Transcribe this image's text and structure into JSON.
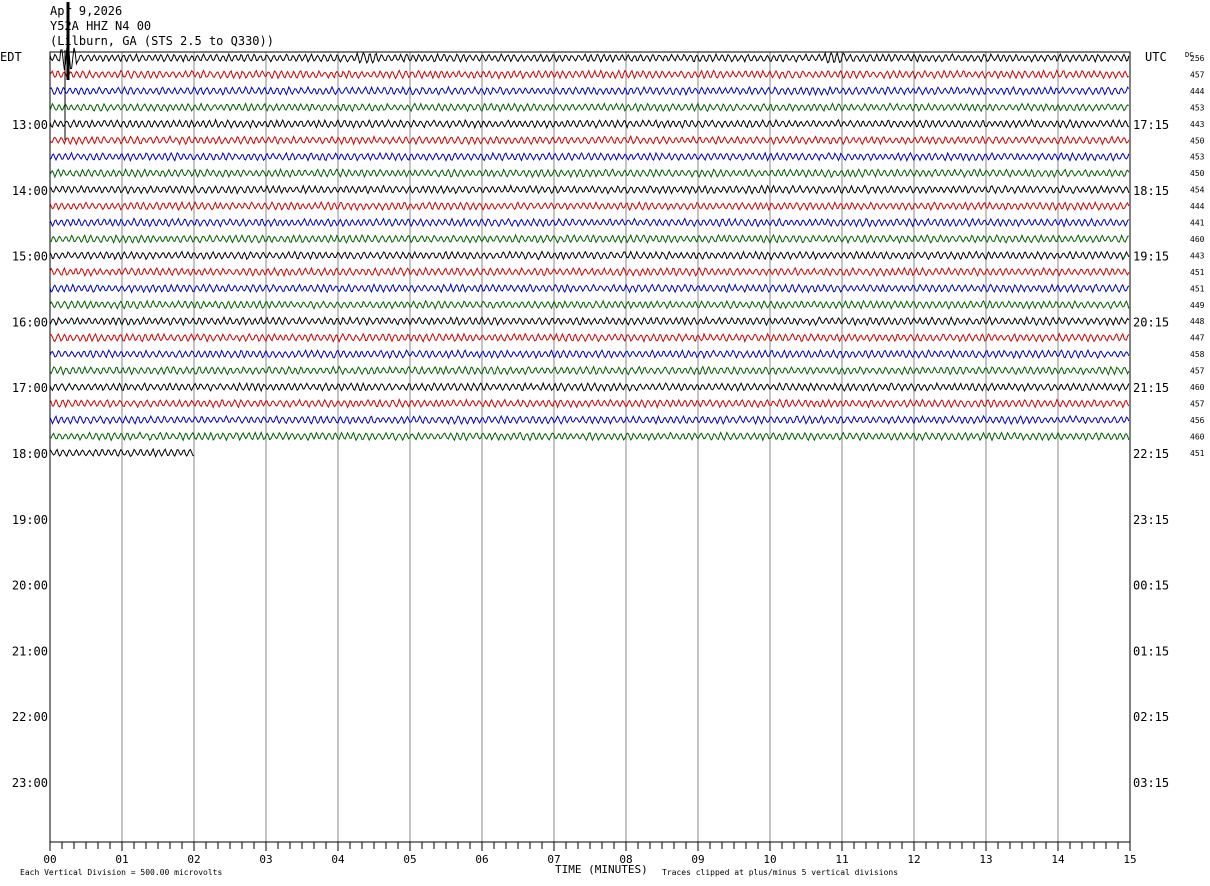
{
  "header": {
    "date_line": "Apr 9,2026",
    "station_line": "Y52A HHZ N4 00",
    "location_line": "(Lilburn, GA (STS 2.5 to Q330))"
  },
  "left_timezone": "EDT",
  "right_timezone": "UTC",
  "dc_label": "DC",
  "footer": {
    "scale_note": "Each Vertical Division =  500.00 microvolts",
    "x_axis_label": "TIME (MINUTES)",
    "clip_note": "Traces clipped at plus/minus 5 vertical divisions"
  },
  "colors": {
    "trace_cycle": [
      "#000000",
      "#d00000",
      "#0000c0",
      "#006000"
    ],
    "grid": "#888888",
    "frame": "#000000"
  },
  "chart_data": {
    "type": "line",
    "title": "",
    "xlabel": "TIME (MINUTES)",
    "ylabel": "",
    "xlim": [
      0,
      15
    ],
    "x_ticks": [
      "00",
      "01",
      "02",
      "03",
      "04",
      "05",
      "06",
      "07",
      "08",
      "09",
      "10",
      "11",
      "12",
      "13",
      "14",
      "15"
    ],
    "left_hour_labels": [
      "13:00",
      "14:00",
      "15:00",
      "16:00",
      "17:00",
      "18:00",
      "19:00",
      "20:00",
      "21:00",
      "22:00",
      "23:00"
    ],
    "right_hour_labels": [
      "17:15",
      "18:15",
      "19:15",
      "20:15",
      "21:15",
      "22:15",
      "23:15",
      "00:15",
      "01:15",
      "02:15",
      "03:15"
    ],
    "dc_offsets": [
      "256",
      "457",
      "444",
      "453",
      "443",
      "450",
      "453",
      "450",
      "454",
      "444",
      "441",
      "460",
      "443",
      "451",
      "451",
      "449",
      "448",
      "447",
      "458",
      "457",
      "460",
      "457",
      "456",
      "460",
      "451"
    ],
    "rows_per_hour": 4,
    "rows_before_first_label": 4,
    "last_row_minutes": 2,
    "events": [
      {
        "row": 0,
        "minute": 0.25,
        "type": "large spike"
      },
      {
        "row": 0,
        "minute": 4.4,
        "type": "burst"
      },
      {
        "row": 0,
        "minute": 10.9,
        "type": "burst"
      }
    ]
  }
}
